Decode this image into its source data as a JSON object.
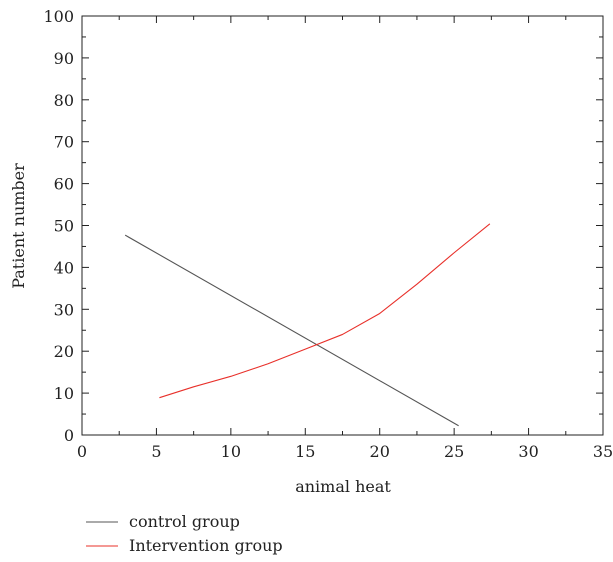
{
  "chart_data": {
    "type": "line",
    "xlabel": "animal heat",
    "ylabel": "Patient number",
    "xlim": [
      0,
      35
    ],
    "ylim": [
      0,
      100
    ],
    "x_ticks": [
      "0",
      "5",
      "10",
      "15",
      "20",
      "25",
      "30",
      "35"
    ],
    "y_ticks": [
      "0",
      "10",
      "20",
      "30",
      "40",
      "50",
      "60",
      "70",
      "80",
      "90",
      "100"
    ],
    "grid": false,
    "legend_position": "bottom-left",
    "series": [
      {
        "name": "control group",
        "color": "#555555",
        "x": [
          2.9,
          25.3
        ],
        "y": [
          47.7,
          2.2
        ]
      },
      {
        "name": "Intervention group",
        "color": "#e8302a",
        "x": [
          5.2,
          7.5,
          10.0,
          12.5,
          15.0,
          17.5,
          20.0,
          22.5,
          25.0,
          27.4
        ],
        "y": [
          8.9,
          11.5,
          14.0,
          17.0,
          20.5,
          24.0,
          29.0,
          36.0,
          43.5,
          50.4
        ]
      }
    ]
  }
}
